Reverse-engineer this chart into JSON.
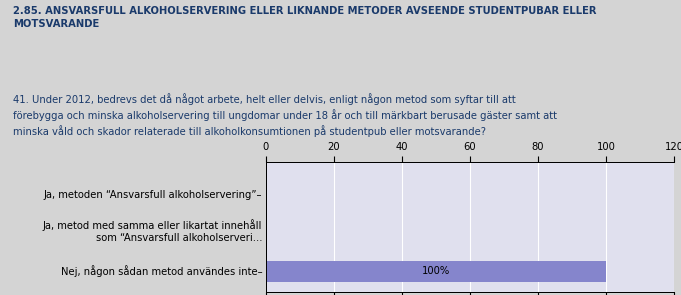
{
  "title": "2.85. ANSVARSFULL ALKOHOLSERVERING ELLER LIKNANDE METODER AVSEENDE STUDENTPUBAR ELLER\nMOTSVARANDE",
  "question": "41. Under 2012, bedrevs det då något arbete, helt eller delvis, enligt någon metod som syftar till att\nförebygga och minska alkoholservering till ungdomar under 18 år och till märkbart berusade gäster samt att\nminska våld och skador relaterade till alkoholkonsumtionen på studentpub eller motsvarande?",
  "categories": [
    "Ja, metoden “Ansvarsfull alkoholservering”–",
    "Ja, metod med samma eller likartat innehåll\nsom “Ansvarsfull alkoholserveri...",
    "Nej, någon sådan metod användes inte–"
  ],
  "values": [
    0,
    0,
    100
  ],
  "bar_color": "#8585cc",
  "bar_label": "100%",
  "bg_color": "#d4d4d4",
  "plot_bg_color": "#e0e0ee",
  "title_color": "#1a3a6b",
  "question_color": "#1a3a6b",
  "xlim": [
    0,
    120
  ],
  "xticks": [
    0,
    20,
    40,
    60,
    80,
    100,
    120
  ],
  "grid_color": "#ffffff",
  "text_color": "#000000",
  "title_fontsize": 7.2,
  "question_fontsize": 7.2,
  "tick_fontsize": 7.2,
  "label_fontsize": 7.2,
  "bar_label_fontsize": 7.2
}
